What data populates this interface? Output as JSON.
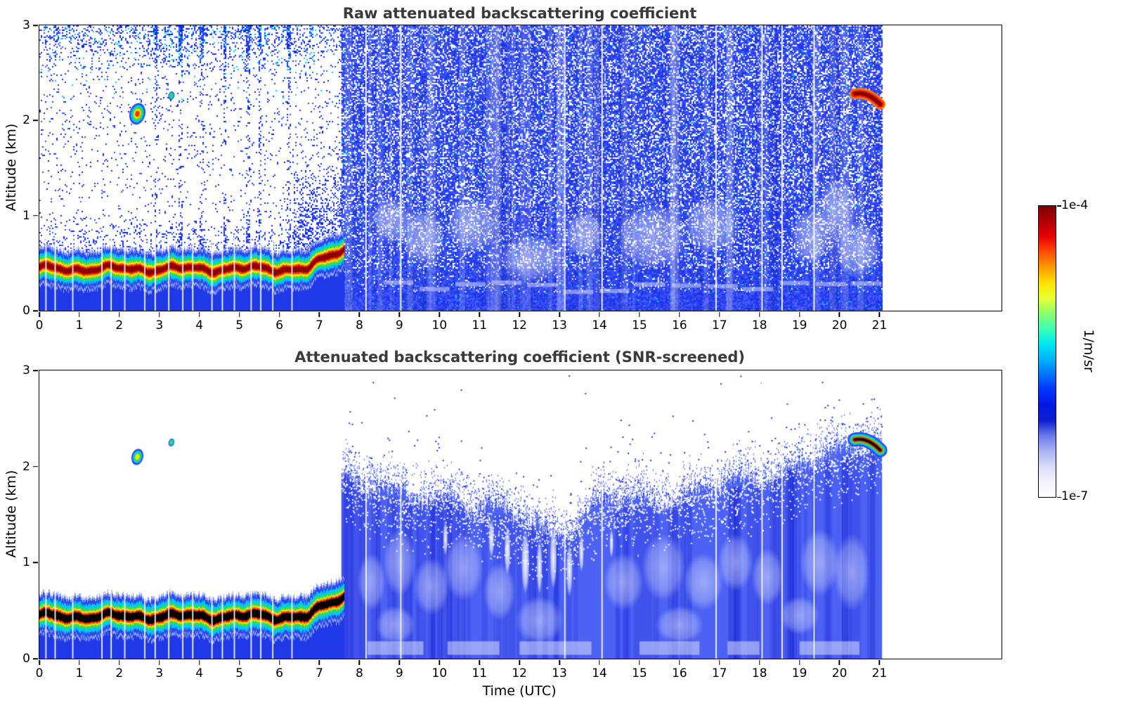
{
  "figure": {
    "background": "#ffffff"
  },
  "colorbar": {
    "max_label": "1e-4",
    "min_label": "1e-7",
    "unit": "1/m/sr",
    "scale": "log",
    "stops": [
      "#7a0000",
      "#b30000",
      "#e60000",
      "#ff4d00",
      "#ff9900",
      "#ffe100",
      "#eaff2e",
      "#8cff6b",
      "#3dffb5",
      "#00e8f0",
      "#00b4ff",
      "#0072ff",
      "#0033ff",
      "#0018e0",
      "#0b1fd0",
      "#6a79ea",
      "#aab4f2",
      "#d8dcf8",
      "#f2f3fc",
      "#ffffff"
    ]
  },
  "chart_data": [
    {
      "type": "heatmap",
      "title": "Raw attenuated backscattering coefficient",
      "xlabel": "",
      "ylabel": "Altitude (km)",
      "xlim": [
        0,
        24.05
      ],
      "ylim": [
        0,
        3
      ],
      "xticks": [
        0,
        1,
        2,
        3,
        4,
        5,
        6,
        7,
        8,
        9,
        10,
        11,
        12,
        13,
        14,
        15,
        16,
        17,
        18,
        19,
        20,
        21
      ],
      "yticks": [
        0,
        1,
        2,
        3
      ],
      "value_range": {
        "min_label": "1e-7",
        "max_label": "1e-4",
        "units": "1/m/sr",
        "scale": "log"
      },
      "features": {
        "data_start": 0,
        "data_end": 21.05,
        "snr_transition_time": 7.55,
        "boundary_layer": {
          "time_start": 0,
          "time_end": 7.62,
          "base_altitude_km": 0.44,
          "rise_start_time": 6.7,
          "peak_altitude_km": 0.66,
          "core_color": "#8b0000"
        },
        "elevated_plumes": [
          {
            "time": 2.45,
            "altitude_km": 2.07
          },
          {
            "time": 3.3,
            "altitude_km": 2.26
          }
        ],
        "elevated_layer": {
          "time_start": 20.38,
          "time_end": 21.02,
          "altitude_start_km": 2.28,
          "altitude_end_km": 2.17,
          "core_color": "#8b0000"
        },
        "profile_gap_times": [
          0.15,
          0.38,
          0.82,
          1.55,
          1.78,
          2.12,
          2.62,
          2.88,
          3.22,
          3.57,
          3.82,
          4.3,
          4.56,
          4.86,
          5.28,
          5.52,
          5.82,
          6.3,
          8.15,
          9.02,
          13.12,
          14.05,
          16.9,
          18.05,
          18.55,
          19.35
        ],
        "dense_noise_stripe_times": [
          2.9,
          3.5,
          4.05,
          4.62,
          5.2,
          5.5,
          6.22
        ],
        "aerosol_haze": [
          [
            8.8,
            0.95,
            0.5,
            0.25
          ],
          [
            9.6,
            0.78,
            0.55,
            0.3
          ],
          [
            10.8,
            0.9,
            0.6,
            0.3
          ],
          [
            12.3,
            0.55,
            0.8,
            0.25
          ],
          [
            13.6,
            0.8,
            0.5,
            0.25
          ],
          [
            15.3,
            0.78,
            0.9,
            0.35
          ],
          [
            16.8,
            0.9,
            0.7,
            0.3
          ],
          [
            19.3,
            0.78,
            0.5,
            0.3
          ],
          [
            19.95,
            1.05,
            0.5,
            0.35
          ],
          [
            20.45,
            0.65,
            0.6,
            0.3
          ]
        ]
      }
    },
    {
      "type": "heatmap",
      "title": "Attenuated backscattering coefficient (SNR-screened)",
      "xlabel": "Time (UTC)",
      "ylabel": "Altitude (km)",
      "xlim": [
        0,
        24.05
      ],
      "ylim": [
        0,
        3
      ],
      "xticks": [
        0,
        1,
        2,
        3,
        4,
        5,
        6,
        7,
        8,
        9,
        10,
        11,
        12,
        13,
        14,
        15,
        16,
        17,
        18,
        19,
        20,
        21
      ],
      "yticks": [
        0,
        1,
        2,
        3
      ],
      "value_range": {
        "min_label": "1e-7",
        "max_label": "1e-4",
        "units": "1/m/sr",
        "scale": "log"
      },
      "features": {
        "data_start": 0,
        "data_end": 21.05,
        "snr_transition_time": 7.55,
        "boundary_layer": {
          "time_start": 0,
          "time_end": 7.62,
          "base_altitude_km": 0.44,
          "rise_start_time": 6.7,
          "peak_altitude_km": 0.66,
          "core_color": "#000000"
        },
        "elevated_plumes": [
          {
            "time": 2.45,
            "altitude_km": 2.1
          },
          {
            "time": 3.3,
            "altitude_km": 2.25
          }
        ],
        "elevated_layer": {
          "time_start": 20.38,
          "time_end": 21.02,
          "altitude_start_km": 2.28,
          "altitude_end_km": 2.17,
          "core_color": "#000000"
        },
        "profile_gap_times": [
          0.15,
          0.38,
          0.82,
          1.55,
          1.78,
          2.12,
          2.62,
          2.88,
          3.22,
          3.57,
          3.82,
          4.3,
          4.56,
          4.86,
          5.28,
          5.52,
          5.82,
          6.3,
          8.15,
          9.02,
          13.12,
          14.05,
          16.9,
          18.05,
          18.55,
          19.35
        ],
        "cloud_top_profile": [
          [
            7.6,
            1.92
          ],
          [
            8.0,
            1.8
          ],
          [
            8.6,
            1.7
          ],
          [
            9.3,
            1.63
          ],
          [
            10.0,
            1.7
          ],
          [
            10.7,
            1.58
          ],
          [
            11.4,
            1.5
          ],
          [
            12.0,
            1.45
          ],
          [
            12.6,
            1.32
          ],
          [
            13.3,
            1.36
          ],
          [
            14.0,
            1.58
          ],
          [
            15.0,
            1.62
          ],
          [
            16.0,
            1.68
          ],
          [
            17.0,
            1.73
          ],
          [
            17.8,
            1.85
          ],
          [
            18.6,
            1.95
          ],
          [
            19.3,
            2.03
          ],
          [
            20.0,
            2.1
          ],
          [
            20.6,
            2.2
          ],
          [
            21.0,
            2.28
          ]
        ],
        "cloud_gaps": [
          [
            10.15,
            1.25,
            0.06,
            0.18
          ],
          [
            11.3,
            1.25,
            0.07,
            0.2
          ],
          [
            11.7,
            1.12,
            0.08,
            0.25
          ],
          [
            12.15,
            1.0,
            0.1,
            0.33
          ],
          [
            12.5,
            0.95,
            0.07,
            0.28
          ],
          [
            12.85,
            1.05,
            0.09,
            0.33
          ],
          [
            13.25,
            0.92,
            0.08,
            0.28
          ],
          [
            13.55,
            1.1,
            0.06,
            0.2
          ],
          [
            14.3,
            1.2,
            0.05,
            0.15
          ]
        ],
        "pale_patches": [
          [
            8.3,
            0.8,
            0.35,
            0.3
          ],
          [
            9.0,
            1.0,
            0.4,
            0.35
          ],
          [
            9.8,
            0.75,
            0.45,
            0.3
          ],
          [
            10.6,
            0.95,
            0.5,
            0.35
          ],
          [
            11.5,
            0.7,
            0.4,
            0.3
          ],
          [
            14.6,
            0.8,
            0.5,
            0.3
          ],
          [
            15.6,
            0.95,
            0.55,
            0.35
          ],
          [
            16.6,
            0.8,
            0.5,
            0.3
          ],
          [
            17.4,
            1.0,
            0.45,
            0.3
          ],
          [
            18.2,
            0.85,
            0.4,
            0.3
          ],
          [
            19.5,
            1.0,
            0.5,
            0.35
          ],
          [
            20.3,
            0.9,
            0.45,
            0.4
          ],
          [
            8.9,
            0.35,
            0.5,
            0.2
          ],
          [
            12.5,
            0.4,
            0.6,
            0.25
          ],
          [
            16.0,
            0.35,
            0.6,
            0.2
          ],
          [
            19.0,
            0.45,
            0.5,
            0.2
          ]
        ],
        "bottom_pale_ranges": [
          [
            8.2,
            9.6
          ],
          [
            10.2,
            11.5
          ],
          [
            12.0,
            13.8
          ],
          [
            15.0,
            16.5
          ],
          [
            17.2,
            18.0
          ],
          [
            19.0,
            20.5
          ]
        ]
      }
    }
  ]
}
